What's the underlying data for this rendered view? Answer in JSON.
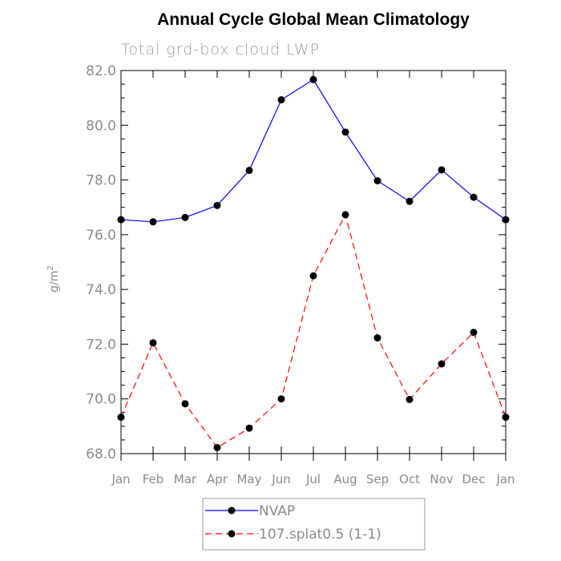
{
  "chart_data": {
    "type": "line",
    "title": "Annual Cycle Global Mean Climatology",
    "subtitle": "Total grd-box cloud LWP",
    "ylabel": "g/m",
    "ylabel_sup": "2",
    "xlabel": "",
    "categories": [
      "Jan",
      "Feb",
      "Mar",
      "Apr",
      "May",
      "Jun",
      "Jul",
      "Aug",
      "Sep",
      "Oct",
      "Nov",
      "Dec",
      "Jan"
    ],
    "ylim": [
      68.0,
      82.0
    ],
    "yticks": [
      "68.0",
      "70.0",
      "72.0",
      "74.0",
      "76.0",
      "78.0",
      "80.0",
      "82.0"
    ],
    "yticks_values": [
      68,
      70,
      72,
      74,
      76,
      78,
      80,
      82
    ],
    "grid": false,
    "legend_position": "bottom",
    "series": [
      {
        "name": "NVAP",
        "color": "#0000ff",
        "dash": "solid",
        "values": [
          76.55,
          76.47,
          76.63,
          77.07,
          78.35,
          80.93,
          81.67,
          79.75,
          77.97,
          77.22,
          78.37,
          77.37,
          76.55
        ]
      },
      {
        "name": "107.splat0.5 (1-1)",
        "color": "#ff0000",
        "dash": "dashed",
        "values": [
          69.33,
          72.05,
          69.82,
          68.22,
          68.93,
          70.0,
          74.5,
          76.73,
          72.23,
          69.98,
          71.28,
          72.43,
          69.33
        ]
      }
    ]
  }
}
